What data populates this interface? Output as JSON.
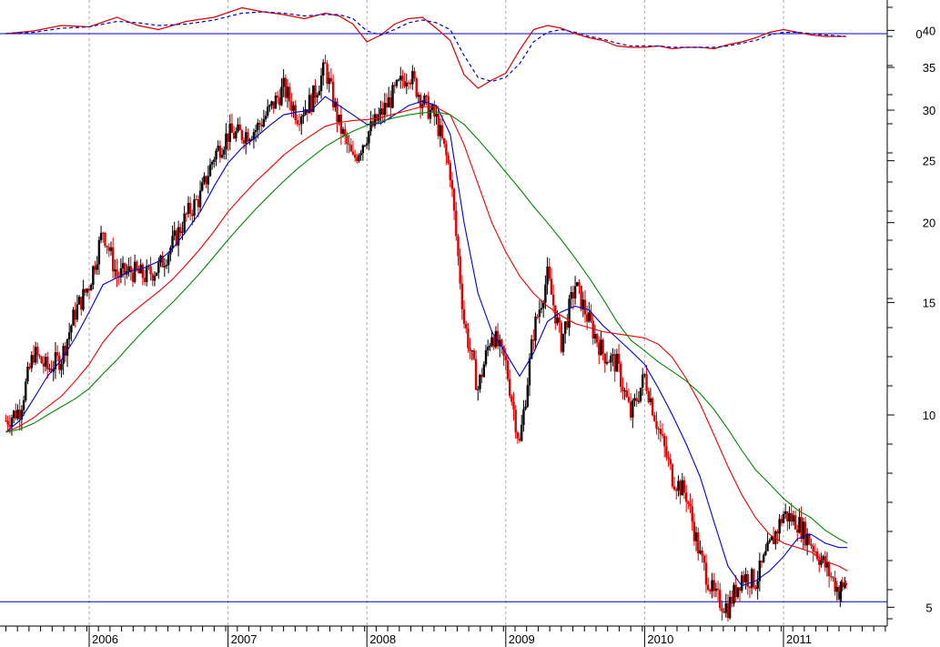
{
  "chart_data": [
    {
      "type": "line",
      "panel": "oscillator",
      "title": "",
      "xlabel": "",
      "ylabel": "",
      "yticks": [
        "0"
      ],
      "zero_line": 0,
      "grid": "vertical dashed at year boundaries",
      "x": [
        2005.4,
        2005.6,
        2005.8,
        2006.0,
        2006.2,
        2006.35,
        2006.5,
        2006.7,
        2006.9,
        2007.1,
        2007.25,
        2007.4,
        2007.55,
        2007.7,
        2007.8,
        2007.9,
        2008.0,
        2008.1,
        2008.2,
        2008.3,
        2008.4,
        2008.5,
        2008.6,
        2008.7,
        2008.8,
        2008.9,
        2009.0,
        2009.1,
        2009.2,
        2009.3,
        2009.4,
        2009.5,
        2009.6,
        2009.7,
        2009.8,
        2009.9,
        2010.0,
        2010.1,
        2010.2,
        2010.3,
        2010.4,
        2010.5,
        2010.6,
        2010.7,
        2010.8,
        2010.9,
        2011.0,
        2011.1,
        2011.2,
        2011.3,
        2011.45
      ],
      "series": [
        {
          "values": [
            0.0,
            0.2,
            0.6,
            0.5,
            1.2,
            0.6,
            0.3,
            0.9,
            1.2,
            1.9,
            1.6,
            1.4,
            1.1,
            1.5,
            1.3,
            0.7,
            -0.6,
            -0.1,
            0.7,
            1.1,
            1.2,
            0.4,
            -0.5,
            -3.0,
            -4.0,
            -3.4,
            -2.9,
            -1.2,
            0.3,
            0.6,
            0.4,
            0.0,
            -0.3,
            -0.5,
            -0.9,
            -1.0,
            -1.0,
            -0.9,
            -1.1,
            -1.0,
            -1.0,
            -1.1,
            -0.8,
            -0.6,
            -0.3,
            0.1,
            0.3,
            0.1,
            -0.1,
            -0.2,
            -0.2
          ],
          "color": "#dd0000",
          "dash": "none"
        },
        {
          "values": [
            0.0,
            0.1,
            0.4,
            0.5,
            0.9,
            0.8,
            0.6,
            0.7,
            1.0,
            1.5,
            1.6,
            1.5,
            1.3,
            1.4,
            1.4,
            1.1,
            0.2,
            -0.1,
            0.3,
            0.8,
            1.0,
            0.8,
            0.3,
            -1.6,
            -3.2,
            -3.5,
            -3.2,
            -2.2,
            -0.6,
            0.1,
            0.3,
            0.1,
            -0.2,
            -0.4,
            -0.7,
            -0.9,
            -0.9,
            -0.9,
            -1.0,
            -1.0,
            -1.0,
            -1.0,
            -0.9,
            -0.7,
            -0.5,
            -0.1,
            0.1,
            0.1,
            0.0,
            -0.1,
            -0.2
          ],
          "color": "#0000cc",
          "dash": "4,3"
        }
      ]
    },
    {
      "type": "candlestick",
      "panel": "price",
      "title": "",
      "xlabel": "",
      "ylabel": "",
      "scale": "log",
      "ylim": [
        4.0,
        42.0
      ],
      "yticks": [
        "40",
        "35",
        "30",
        "25",
        "20",
        "15",
        "10",
        "5"
      ],
      "xticks": [
        "2006",
        "2007",
        "2008",
        "2009",
        "2010",
        "2011"
      ],
      "grid": "vertical dashed at year boundaries",
      "horizontal_line": 5.1,
      "x": [
        2005.4,
        2005.5,
        2005.6,
        2005.7,
        2005.8,
        2005.9,
        2006.0,
        2006.1,
        2006.2,
        2006.3,
        2006.4,
        2006.5,
        2006.6,
        2006.7,
        2006.8,
        2006.9,
        2007.0,
        2007.1,
        2007.2,
        2007.3,
        2007.4,
        2007.5,
        2007.6,
        2007.7,
        2007.8,
        2007.9,
        2008.0,
        2008.1,
        2008.2,
        2008.3,
        2008.4,
        2008.5,
        2008.6,
        2008.7,
        2008.8,
        2008.9,
        2009.0,
        2009.1,
        2009.2,
        2009.3,
        2009.4,
        2009.5,
        2009.6,
        2009.7,
        2009.8,
        2009.9,
        2010.0,
        2010.1,
        2010.2,
        2010.3,
        2010.4,
        2010.5,
        2010.6,
        2010.7,
        2010.8,
        2010.9,
        2011.0,
        2011.1,
        2011.2,
        2011.3,
        2011.4,
        2011.46
      ],
      "close": [
        9.8,
        10.2,
        12.5,
        11.8,
        12.3,
        14.5,
        16.0,
        19.5,
        16.5,
        16.8,
        16.5,
        17.0,
        18.5,
        20.5,
        22.0,
        25.5,
        27.5,
        27.5,
        28.0,
        30.0,
        32.5,
        29.5,
        31.0,
        35.0,
        28.5,
        25.0,
        27.5,
        29.5,
        32.0,
        34.5,
        31.0,
        29.0,
        24.0,
        14.0,
        11.0,
        13.5,
        12.0,
        9.0,
        13.5,
        16.5,
        13.0,
        16.0,
        14.0,
        12.5,
        12.0,
        10.0,
        11.5,
        9.5,
        8.0,
        7.5,
        6.0,
        5.2,
        5.0,
        5.6,
        5.5,
        6.2,
        7.0,
        6.8,
        6.3,
        5.8,
        5.3,
        5.5
      ],
      "series": [
        {
          "name": "",
          "values": [
            9.4,
            9.8,
            10.6,
            11.5,
            12.2,
            13.2,
            14.5,
            16.0,
            16.4,
            16.8,
            17.0,
            17.4,
            18.2,
            19.4,
            20.8,
            22.8,
            24.8,
            26.2,
            27.2,
            28.4,
            29.5,
            29.8,
            30.0,
            31.5,
            30.5,
            29.5,
            28.5,
            28.6,
            29.5,
            30.5,
            31.0,
            30.5,
            27.5,
            20.0,
            15.5,
            13.5,
            12.5,
            11.5,
            12.5,
            14.0,
            14.5,
            14.8,
            14.6,
            13.8,
            13.2,
            12.6,
            12.0,
            11.0,
            10.0,
            9.0,
            8.0,
            6.8,
            5.8,
            5.4,
            5.5,
            5.7,
            6.0,
            6.4,
            6.5,
            6.3,
            6.2,
            6.2
          ],
          "color": "#0000cc"
        },
        {
          "name": "",
          "values": [
            9.4,
            9.6,
            9.9,
            10.3,
            10.7,
            11.3,
            12.0,
            13.0,
            13.8,
            14.4,
            15.0,
            15.6,
            16.3,
            17.2,
            18.2,
            19.4,
            20.8,
            22.0,
            23.2,
            24.3,
            25.5,
            26.5,
            27.4,
            28.3,
            28.7,
            28.9,
            29.0,
            29.2,
            29.6,
            30.0,
            30.4,
            30.3,
            29.5,
            26.5,
            23.0,
            20.0,
            18.0,
            16.5,
            15.5,
            14.8,
            14.3,
            13.9,
            13.7,
            13.5,
            13.4,
            13.3,
            13.2,
            12.9,
            12.3,
            11.4,
            10.4,
            9.3,
            8.3,
            7.5,
            6.9,
            6.5,
            6.3,
            6.2,
            6.1,
            5.9,
            5.8,
            5.7
          ],
          "color": "#ee0000"
        },
        {
          "name": "",
          "values": [
            9.4,
            9.5,
            9.7,
            10.0,
            10.3,
            10.6,
            11.0,
            11.6,
            12.2,
            12.9,
            13.6,
            14.3,
            15.0,
            15.8,
            16.7,
            17.7,
            18.8,
            19.9,
            21.0,
            22.1,
            23.2,
            24.3,
            25.3,
            26.3,
            27.1,
            27.8,
            28.4,
            28.8,
            29.2,
            29.5,
            29.7,
            29.8,
            29.5,
            28.5,
            27.0,
            25.5,
            24.0,
            22.6,
            21.2,
            20.0,
            18.8,
            17.6,
            16.4,
            15.2,
            14.0,
            13.1,
            12.6,
            12.1,
            11.7,
            11.3,
            10.8,
            10.2,
            9.5,
            8.8,
            8.2,
            7.8,
            7.4,
            7.1,
            6.9,
            6.6,
            6.4,
            6.3
          ],
          "color": "#008800"
        }
      ]
    }
  ],
  "colors": {
    "up_candle": "#000000",
    "down_candle": "#dd0000",
    "grid": "#aaaaaa",
    "hline": "#0000cc"
  }
}
